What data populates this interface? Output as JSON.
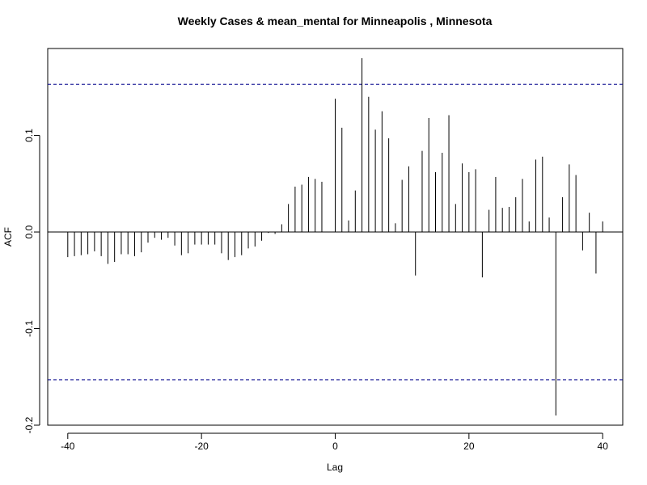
{
  "chart_data": {
    "type": "bar",
    "title": "Weekly Cases & mean_mental for Minneapolis , Minnesota",
    "xlabel": "Lag",
    "ylabel": "ACF",
    "xlim": [
      -43,
      43
    ],
    "ylim": [
      -0.2,
      0.19
    ],
    "x_ticks": [
      -40,
      -20,
      0,
      20,
      40
    ],
    "x_tick_labels": [
      "-40",
      "-20",
      "0",
      "20",
      "40"
    ],
    "y_ticks": [
      -0.2,
      -0.1,
      0.0,
      0.1
    ],
    "y_tick_labels": [
      "-0.2",
      "-0.1",
      "0.0",
      "0.1"
    ],
    "confidence_bounds": [
      0.153,
      -0.153
    ],
    "confidence_color": "#00008b",
    "zero_line": true,
    "grid": false,
    "series": [
      {
        "x": [
          -40,
          -39,
          -38,
          -37,
          -36,
          -35,
          -34,
          -33,
          -32,
          -31,
          -30,
          -29,
          -28,
          -27,
          -26,
          -25,
          -24,
          -23,
          -22,
          -21,
          -20,
          -19,
          -18,
          -17,
          -16,
          -15,
          -14,
          -13,
          -12,
          -11,
          -10,
          -9,
          -8,
          -7,
          -6,
          -5,
          -4,
          -3,
          -2,
          -1,
          0,
          1,
          2,
          3,
          4,
          5,
          6,
          7,
          8,
          9,
          10,
          11,
          12,
          13,
          14,
          15,
          16,
          17,
          18,
          19,
          20,
          21,
          22,
          23,
          24,
          25,
          26,
          27,
          28,
          29,
          30,
          31,
          32,
          33,
          34,
          35,
          36,
          37,
          38,
          39,
          40
        ],
        "values": [
          -0.026,
          -0.025,
          -0.024,
          -0.023,
          -0.02,
          -0.025,
          -0.033,
          -0.031,
          -0.023,
          -0.023,
          -0.025,
          -0.021,
          -0.011,
          -0.006,
          -0.008,
          -0.006,
          -0.014,
          -0.024,
          -0.022,
          -0.013,
          -0.013,
          -0.013,
          -0.013,
          -0.022,
          -0.029,
          -0.026,
          -0.024,
          -0.017,
          -0.015,
          -0.009,
          -0.001,
          -0.002,
          0.008,
          0.029,
          0.047,
          0.049,
          0.057,
          0.055,
          0.052,
          0.0,
          0.138,
          0.108,
          0.012,
          0.043,
          0.18,
          0.14,
          0.106,
          0.125,
          0.097,
          0.009,
          0.054,
          0.068,
          -0.045,
          0.084,
          0.118,
          0.062,
          0.082,
          0.121,
          0.029,
          0.071,
          0.062,
          0.065,
          -0.047,
          0.023,
          0.057,
          0.025,
          0.026,
          0.036,
          0.055,
          0.011,
          0.075,
          0.078,
          0.015,
          -0.19,
          0.036,
          0.07,
          0.059,
          -0.019,
          0.02,
          -0.043,
          0.011
        ]
      }
    ]
  }
}
